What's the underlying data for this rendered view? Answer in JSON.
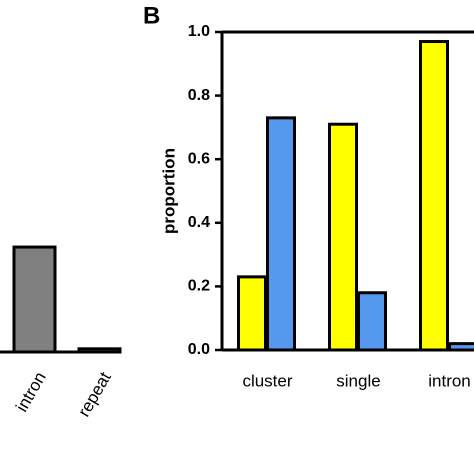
{
  "chart_data": [
    {
      "type": "bar",
      "categories": [
        "intron",
        "repeat"
      ],
      "values": [
        0.33,
        0.01
      ],
      "color": "#808080",
      "ylim": [
        0,
        1
      ]
    },
    {
      "type": "bar",
      "panel_label": "B",
      "ylabel": "proportion",
      "categories": [
        "cluster",
        "single",
        "intron"
      ],
      "series": [
        {
          "color": "#ffff00",
          "values": [
            0.23,
            0.71,
            0.97
          ]
        },
        {
          "color": "#5599ee",
          "values": [
            0.73,
            0.18,
            0.02
          ]
        }
      ],
      "ylim": [
        0,
        1
      ],
      "yticks": [
        {
          "value": 0,
          "label": "0.0"
        },
        0.2,
        0.4,
        0.6,
        0.8,
        {
          "value": 1,
          "label": "1.0"
        }
      ]
    }
  ]
}
